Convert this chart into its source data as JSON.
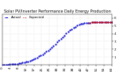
{
  "title": "Solar PV/Inverter Performance Daily Energy Production",
  "background_color": "#ffffff",
  "grid_color": "#aaaaaa",
  "ylim": [
    0,
    6.5
  ],
  "yticks": [
    1,
    2,
    3,
    4,
    5,
    6
  ],
  "ytick_labels": [
    "1",
    "2",
    "3",
    "4",
    "5",
    "6"
  ],
  "legend_labels": [
    "Actual",
    "Expected"
  ],
  "legend_colors": [
    "#0000cc",
    "#cc0000"
  ],
  "actual_x": [
    0,
    1,
    2,
    3,
    4,
    5,
    6,
    7,
    8,
    9,
    10,
    11,
    12,
    13,
    14,
    15,
    16,
    17,
    18,
    19,
    20,
    21,
    22,
    23,
    24,
    25,
    26,
    27,
    28,
    29,
    30,
    31,
    32,
    33,
    34,
    35,
    36,
    37,
    38,
    39,
    40,
    41,
    42,
    43,
    44,
    45,
    46,
    47,
    48,
    49,
    50,
    51,
    52,
    53,
    54,
    55,
    56,
    57,
    58,
    59,
    60
  ],
  "actual_y": [
    0.02,
    0.03,
    0.04,
    0.05,
    0.06,
    0.07,
    0.09,
    0.11,
    0.14,
    0.17,
    0.21,
    0.26,
    0.31,
    0.37,
    0.44,
    0.52,
    0.61,
    0.71,
    0.82,
    0.94,
    1.07,
    1.21,
    1.36,
    1.52,
    1.69,
    1.87,
    2.06,
    2.26,
    2.47,
    2.68,
    2.9,
    3.12,
    3.35,
    3.58,
    3.8,
    4.02,
    4.22,
    4.42,
    4.6,
    4.77,
    4.92,
    5.05,
    5.16,
    5.25,
    5.32,
    5.37,
    5.4,
    5.42,
    5.43,
    5.44,
    5.44,
    5.44,
    5.44,
    5.44,
    5.44,
    5.44,
    5.44,
    5.44,
    5.44,
    5.44,
    5.44
  ],
  "expected_x": [
    48,
    49,
    50,
    51,
    52,
    53,
    54,
    55,
    56,
    57,
    58,
    59,
    60
  ],
  "expected_y": [
    5.43,
    5.44,
    5.44,
    5.44,
    5.44,
    5.44,
    5.44,
    5.44,
    5.44,
    5.44,
    5.44,
    5.44,
    5.44
  ],
  "xlim": [
    0,
    60
  ],
  "title_fontsize": 3.5,
  "tick_fontsize": 3.0,
  "legend_fontsize": 3.0,
  "marker_size": 1.2
}
